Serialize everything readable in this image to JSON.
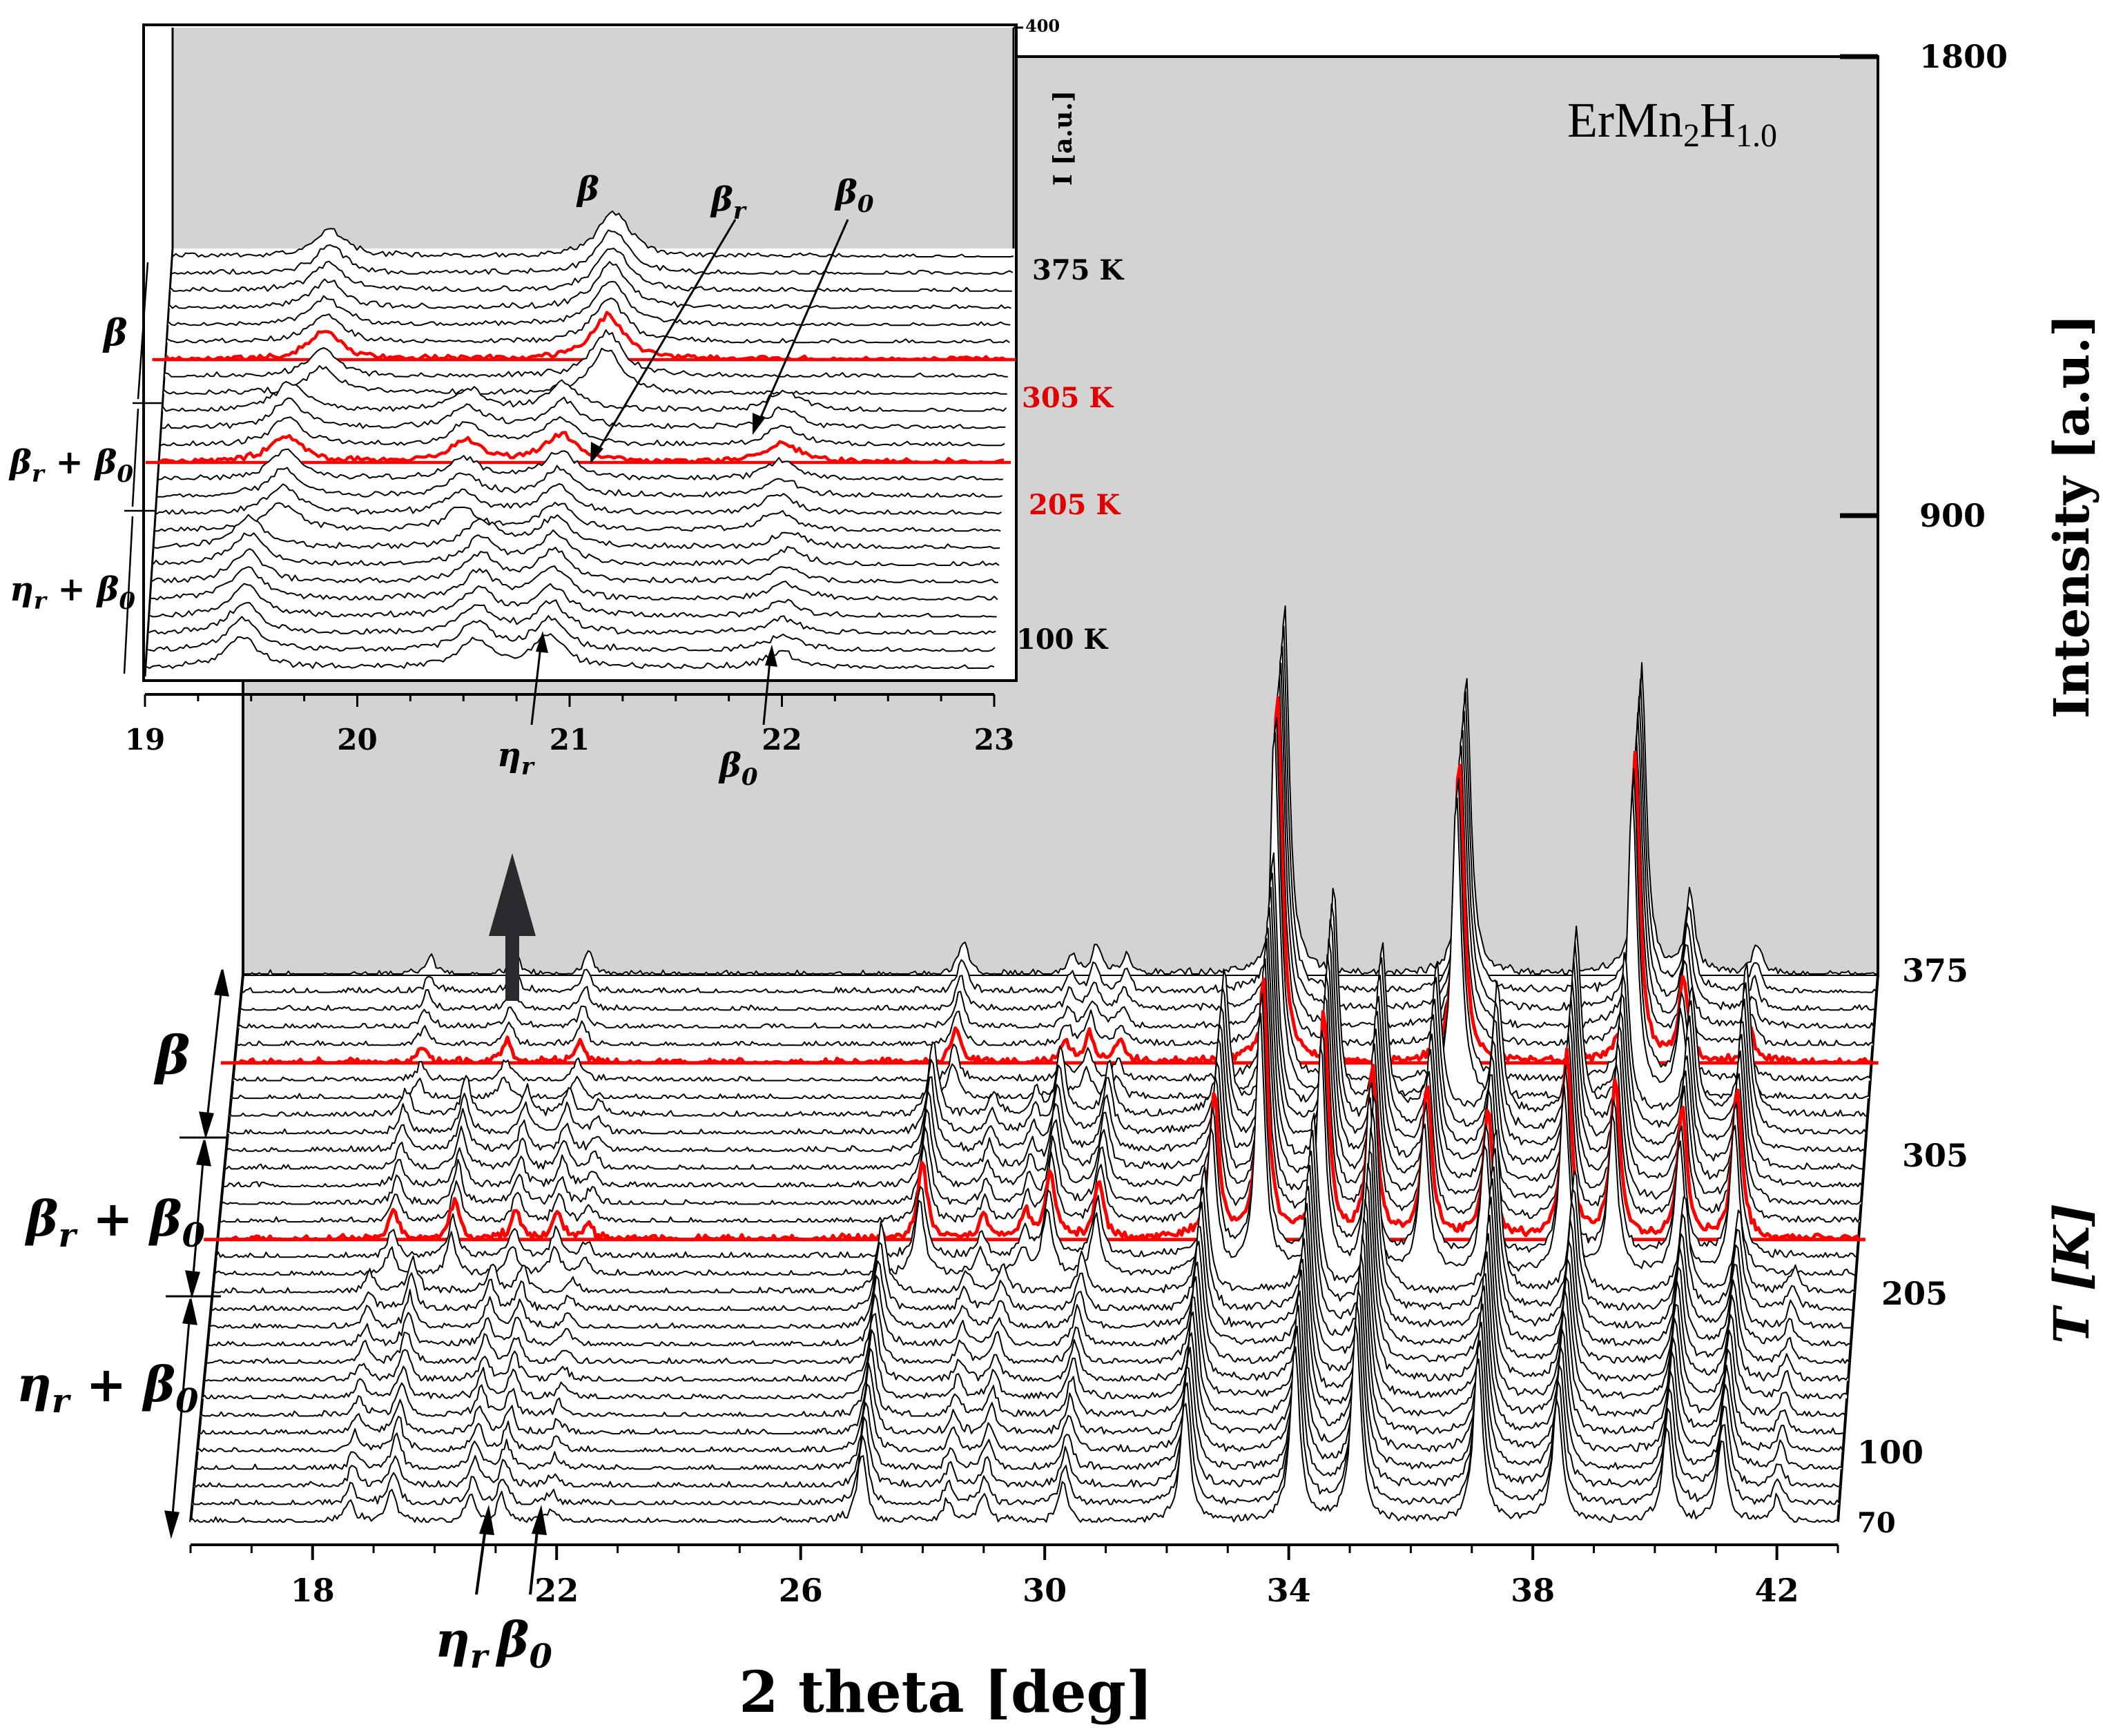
{
  "chart_data": [
    {
      "type": "line",
      "subtype": "stacked waterfall of diffraction patterns",
      "title": "ErMn2H1.0",
      "title_parts": {
        "base": "ErMn",
        "sub1": "2",
        "mid": "H",
        "sub2": "1.0"
      },
      "xlabel": "2 theta [deg]",
      "ylabel_left": "T [K]",
      "ylabel_right": "Intensity [a.u.]",
      "xlim": [
        16,
        43
      ],
      "x_ticks": [
        18,
        22,
        26,
        30,
        34,
        38,
        42
      ],
      "intensity_ticks": [
        900,
        1800
      ],
      "temperature_range": [
        70,
        375
      ],
      "temperature_ticks": [
        375,
        305,
        205,
        100,
        70
      ],
      "n_patterns": 32,
      "highlighted_temperatures": [
        305,
        205
      ],
      "highlight_color": "#ff0000",
      "line_color": "#000000",
      "background_color": "#d3d3d3",
      "phase_regions": [
        {
          "label": "β",
          "from_T": 305,
          "to_T": 375
        },
        {
          "label": "β_r + β_0",
          "from_T": 205,
          "to_T": 305
        },
        {
          "label": "η_r + β_0",
          "from_T": 70,
          "to_T": 205
        }
      ],
      "peak_markers": [
        {
          "label": "η_r",
          "x": 20.6
        },
        {
          "label": "β_0",
          "x": 21.7
        }
      ],
      "peaks_by_phase": {
        "high": [
          [
            19.1,
            26
          ],
          [
            20.5,
            32
          ],
          [
            21.7,
            32
          ],
          [
            27.9,
            52
          ],
          [
            29.7,
            28
          ],
          [
            30.1,
            42
          ],
          [
            30.6,
            30
          ],
          [
            33.2,
            540
          ],
          [
            36.2,
            440
          ],
          [
            39.1,
            450
          ],
          [
            39.9,
            120
          ],
          [
            41.0,
            45
          ]
        ],
        "mid": [
          [
            18.9,
            40
          ],
          [
            19.9,
            58
          ],
          [
            20.9,
            42
          ],
          [
            21.6,
            40
          ],
          [
            22.1,
            22
          ],
          [
            27.6,
            110
          ],
          [
            28.6,
            35
          ],
          [
            29.3,
            38
          ],
          [
            29.7,
            95
          ],
          [
            30.5,
            82
          ],
          [
            32.4,
            210
          ],
          [
            33.2,
            380
          ],
          [
            34.2,
            330
          ],
          [
            35.0,
            250
          ],
          [
            35.9,
            220
          ],
          [
            36.9,
            190
          ],
          [
            38.2,
            270
          ],
          [
            39.0,
            230
          ],
          [
            40.1,
            190
          ],
          [
            41.0,
            220
          ]
        ],
        "low": [
          [
            18.6,
            28
          ],
          [
            19.3,
            48
          ],
          [
            20.6,
            40
          ],
          [
            21.1,
            38
          ],
          [
            21.9,
            20
          ],
          [
            27.0,
            100
          ],
          [
            28.4,
            30
          ],
          [
            29.0,
            40
          ],
          [
            30.3,
            55
          ],
          [
            32.3,
            180
          ],
          [
            34.1,
            260
          ],
          [
            35.1,
            290
          ],
          [
            37.1,
            240
          ],
          [
            38.4,
            180
          ],
          [
            40.2,
            140
          ],
          [
            41.1,
            120
          ],
          [
            42.0,
            35
          ]
        ]
      }
    },
    {
      "type": "line",
      "subtype": "inset stacked patterns (zoom)",
      "xlim": [
        19,
        23
      ],
      "x_ticks": [
        19,
        20,
        21,
        22,
        23
      ],
      "ylabel": "I [a.u.]",
      "y_tick": "400",
      "temperature_labels": [
        "375 K",
        "305 K",
        "205 K",
        "100 K"
      ],
      "n_patterns": 25,
      "phase_regions": [
        "β",
        "β_r + β_0",
        "η_r + β_0"
      ],
      "annotations": [
        "β",
        "β_r",
        "β_0",
        "η_r",
        "β_0"
      ],
      "peaks_by_phase": {
        "high": [
          [
            19.75,
            40
          ],
          [
            21.1,
            65
          ]
        ],
        "mid": [
          [
            19.6,
            40
          ],
          [
            20.45,
            32
          ],
          [
            20.9,
            40
          ],
          [
            21.95,
            28
          ]
        ],
        "low": [
          [
            19.45,
            45
          ],
          [
            20.55,
            40
          ],
          [
            20.9,
            45
          ],
          [
            22.0,
            22
          ]
        ]
      }
    }
  ]
}
